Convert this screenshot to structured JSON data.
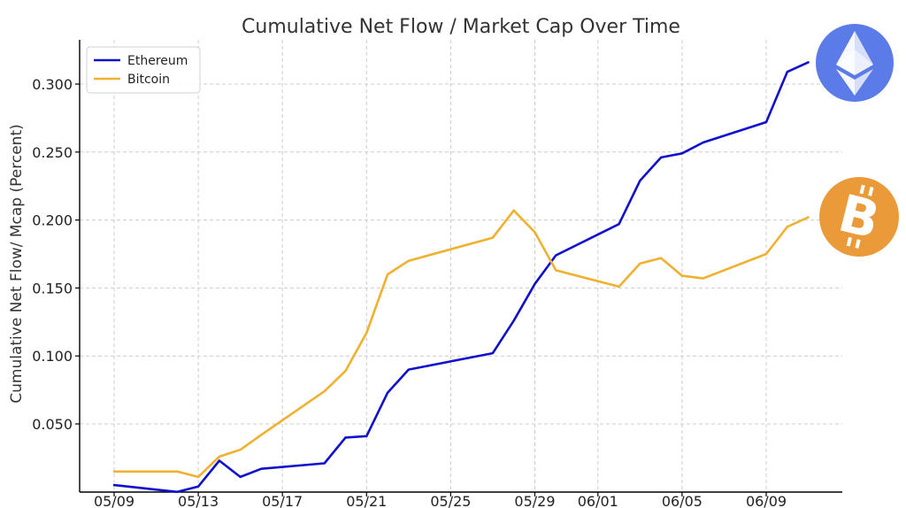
{
  "chart_data": {
    "type": "line",
    "title": "Cumulative Net Flow / Market Cap Over Time",
    "xlabel": "",
    "ylabel": "Cumulative Net Flow/ Mcap (Percent)",
    "x_tick_labels": [
      "05/09",
      "05/13",
      "05/17",
      "05/21",
      "05/25",
      "05/29",
      "06/01",
      "06/05",
      "06/09"
    ],
    "y_ticks": [
      0.05,
      0.1,
      0.15,
      0.2,
      0.25,
      0.3
    ],
    "y_tick_labels": [
      "0.050",
      "0.100",
      "0.150",
      "0.200",
      "0.250",
      "0.300"
    ],
    "ylim": [
      0.0,
      0.33
    ],
    "xlim": [
      "05/08",
      "06/11"
    ],
    "grid": true,
    "legend_position": "top-left",
    "series": [
      {
        "name": "Ethereum",
        "color": "#1010cc",
        "x": [
          "05/09",
          "05/12",
          "05/13",
          "05/14",
          "05/15",
          "05/16",
          "05/19",
          "05/20",
          "05/21",
          "05/22",
          "05/23",
          "05/27",
          "05/28",
          "05/29",
          "05/30",
          "06/02",
          "06/03",
          "06/04",
          "06/05",
          "06/06",
          "06/09",
          "06/10",
          "06/11"
        ],
        "values": [
          0.005,
          0.0,
          0.004,
          0.023,
          0.011,
          0.017,
          0.021,
          0.04,
          0.041,
          0.073,
          0.09,
          0.102,
          0.126,
          0.153,
          0.174,
          0.197,
          0.229,
          0.246,
          0.249,
          0.257,
          0.272,
          0.309,
          0.316
        ]
      },
      {
        "name": "Bitcoin",
        "color": "#f0b030",
        "x": [
          "05/09",
          "05/12",
          "05/13",
          "05/14",
          "05/15",
          "05/16",
          "05/19",
          "05/20",
          "05/21",
          "05/22",
          "05/23",
          "05/27",
          "05/28",
          "05/29",
          "05/30",
          "06/02",
          "06/03",
          "06/04",
          "06/05",
          "06/06",
          "06/09",
          "06/10",
          "06/11"
        ],
        "values": [
          0.015,
          0.015,
          0.011,
          0.026,
          0.031,
          0.042,
          0.074,
          0.089,
          0.117,
          0.16,
          0.17,
          0.187,
          0.207,
          0.191,
          0.163,
          0.151,
          0.168,
          0.172,
          0.159,
          0.157,
          0.175,
          0.195,
          0.202
        ]
      }
    ],
    "logos": [
      {
        "name": "ethereum-logo",
        "color": "#5b7be9"
      },
      {
        "name": "bitcoin-logo",
        "color": "#eb9a3a"
      }
    ]
  }
}
